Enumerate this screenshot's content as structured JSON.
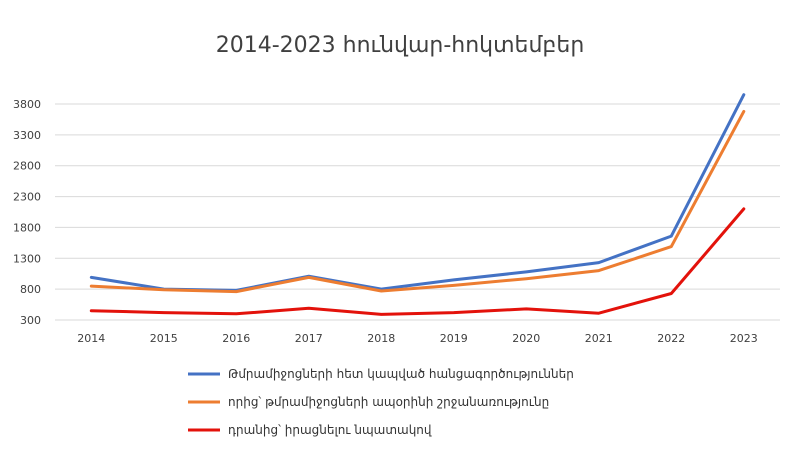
{
  "chart_data": {
    "type": "line",
    "title": "2014-2023 հունվար-հոկտեմբեր",
    "xlabel": "",
    "ylabel": "",
    "x": [
      "2014",
      "2015",
      "2016",
      "2017",
      "2018",
      "2019",
      "2020",
      "2021",
      "2022",
      "2023"
    ],
    "yticks": [
      "300",
      "800",
      "1300",
      "1800",
      "2300",
      "2800",
      "3300",
      "3800"
    ],
    "ylim": [
      300,
      3800
    ],
    "grid": true,
    "legend_position": "bottom",
    "series": [
      {
        "name": "Թմրամիջոցների հետ կապված հանցագործություններ",
        "color": "#4472C4",
        "values": [
          990,
          800,
          780,
          1010,
          800,
          950,
          1080,
          1230,
          1660,
          3950
        ]
      },
      {
        "name": "որից՝ թմրամիջոցների ապօրինի շրջանառությունը",
        "color": "#ED7D31",
        "values": [
          850,
          790,
          760,
          990,
          770,
          860,
          970,
          1100,
          1490,
          3680
        ]
      },
      {
        "name": "դրանից՝ իրացնելու նպատակով",
        "color": "#E3120B",
        "values": [
          450,
          420,
          400,
          490,
          390,
          420,
          480,
          410,
          730,
          2100
        ]
      }
    ]
  }
}
